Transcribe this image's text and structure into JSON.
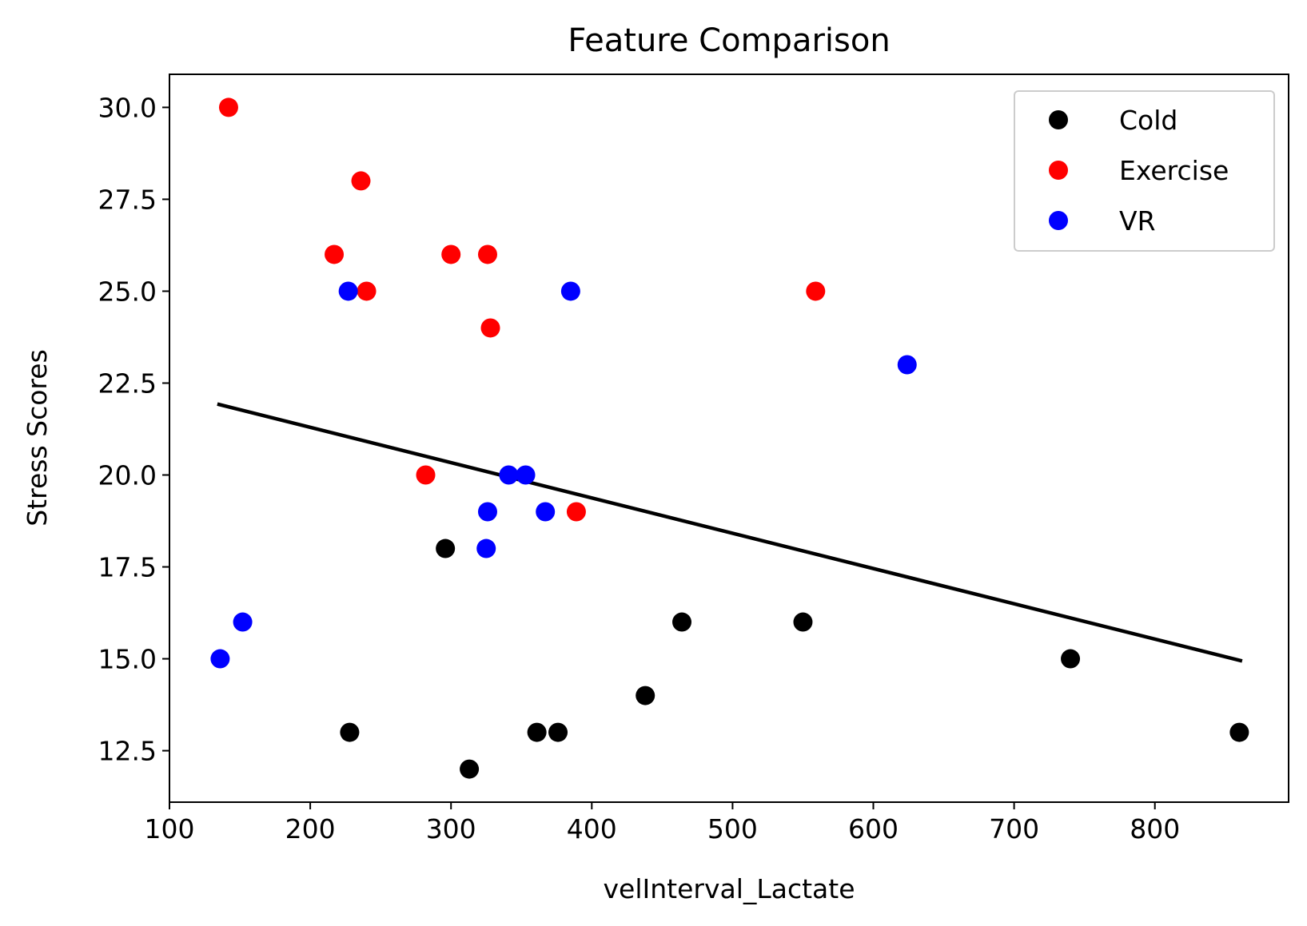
{
  "chart_data": {
    "type": "scatter",
    "title": "Feature Comparison",
    "xlabel": "velInterval_Lactate",
    "ylabel": "Stress Scores",
    "xlim": [
      100,
      895
    ],
    "ylim": [
      11.1,
      30.9
    ],
    "xticks": [
      100,
      200,
      300,
      400,
      500,
      600,
      700,
      800
    ],
    "xtick_labels": [
      "100",
      "200",
      "300",
      "400",
      "500",
      "600",
      "700",
      "800"
    ],
    "yticks": [
      12.5,
      15.0,
      17.5,
      20.0,
      22.5,
      25.0,
      27.5,
      30.0
    ],
    "ytick_labels": [
      "12.5",
      "15.0",
      "17.5",
      "20.0",
      "22.5",
      "25.0",
      "27.5",
      "30.0"
    ],
    "grid": false,
    "legend_position": "top-right",
    "series": [
      {
        "name": "Cold",
        "color": "#000000",
        "points": [
          {
            "x": 228,
            "y": 13
          },
          {
            "x": 296,
            "y": 18
          },
          {
            "x": 313,
            "y": 12
          },
          {
            "x": 361,
            "y": 13
          },
          {
            "x": 376,
            "y": 13
          },
          {
            "x": 438,
            "y": 14
          },
          {
            "x": 464,
            "y": 16
          },
          {
            "x": 550,
            "y": 16
          },
          {
            "x": 740,
            "y": 15
          },
          {
            "x": 860,
            "y": 13
          }
        ]
      },
      {
        "name": "Exercise",
        "color": "#ff0000",
        "points": [
          {
            "x": 142,
            "y": 30
          },
          {
            "x": 217,
            "y": 26
          },
          {
            "x": 236,
            "y": 28
          },
          {
            "x": 240,
            "y": 25
          },
          {
            "x": 282,
            "y": 20
          },
          {
            "x": 300,
            "y": 26
          },
          {
            "x": 326,
            "y": 26
          },
          {
            "x": 328,
            "y": 24
          },
          {
            "x": 389,
            "y": 19
          },
          {
            "x": 559,
            "y": 25
          }
        ]
      },
      {
        "name": "VR",
        "color": "#0000ff",
        "points": [
          {
            "x": 136,
            "y": 15
          },
          {
            "x": 152,
            "y": 16
          },
          {
            "x": 227,
            "y": 25
          },
          {
            "x": 325,
            "y": 18
          },
          {
            "x": 326,
            "y": 19
          },
          {
            "x": 341,
            "y": 20
          },
          {
            "x": 353,
            "y": 20
          },
          {
            "x": 367,
            "y": 19
          },
          {
            "x": 385,
            "y": 25
          },
          {
            "x": 624,
            "y": 23
          }
        ]
      }
    ],
    "trend_line": {
      "color": "#000000",
      "x": [
        134,
        862
      ],
      "y": [
        21.93,
        14.94
      ]
    }
  }
}
